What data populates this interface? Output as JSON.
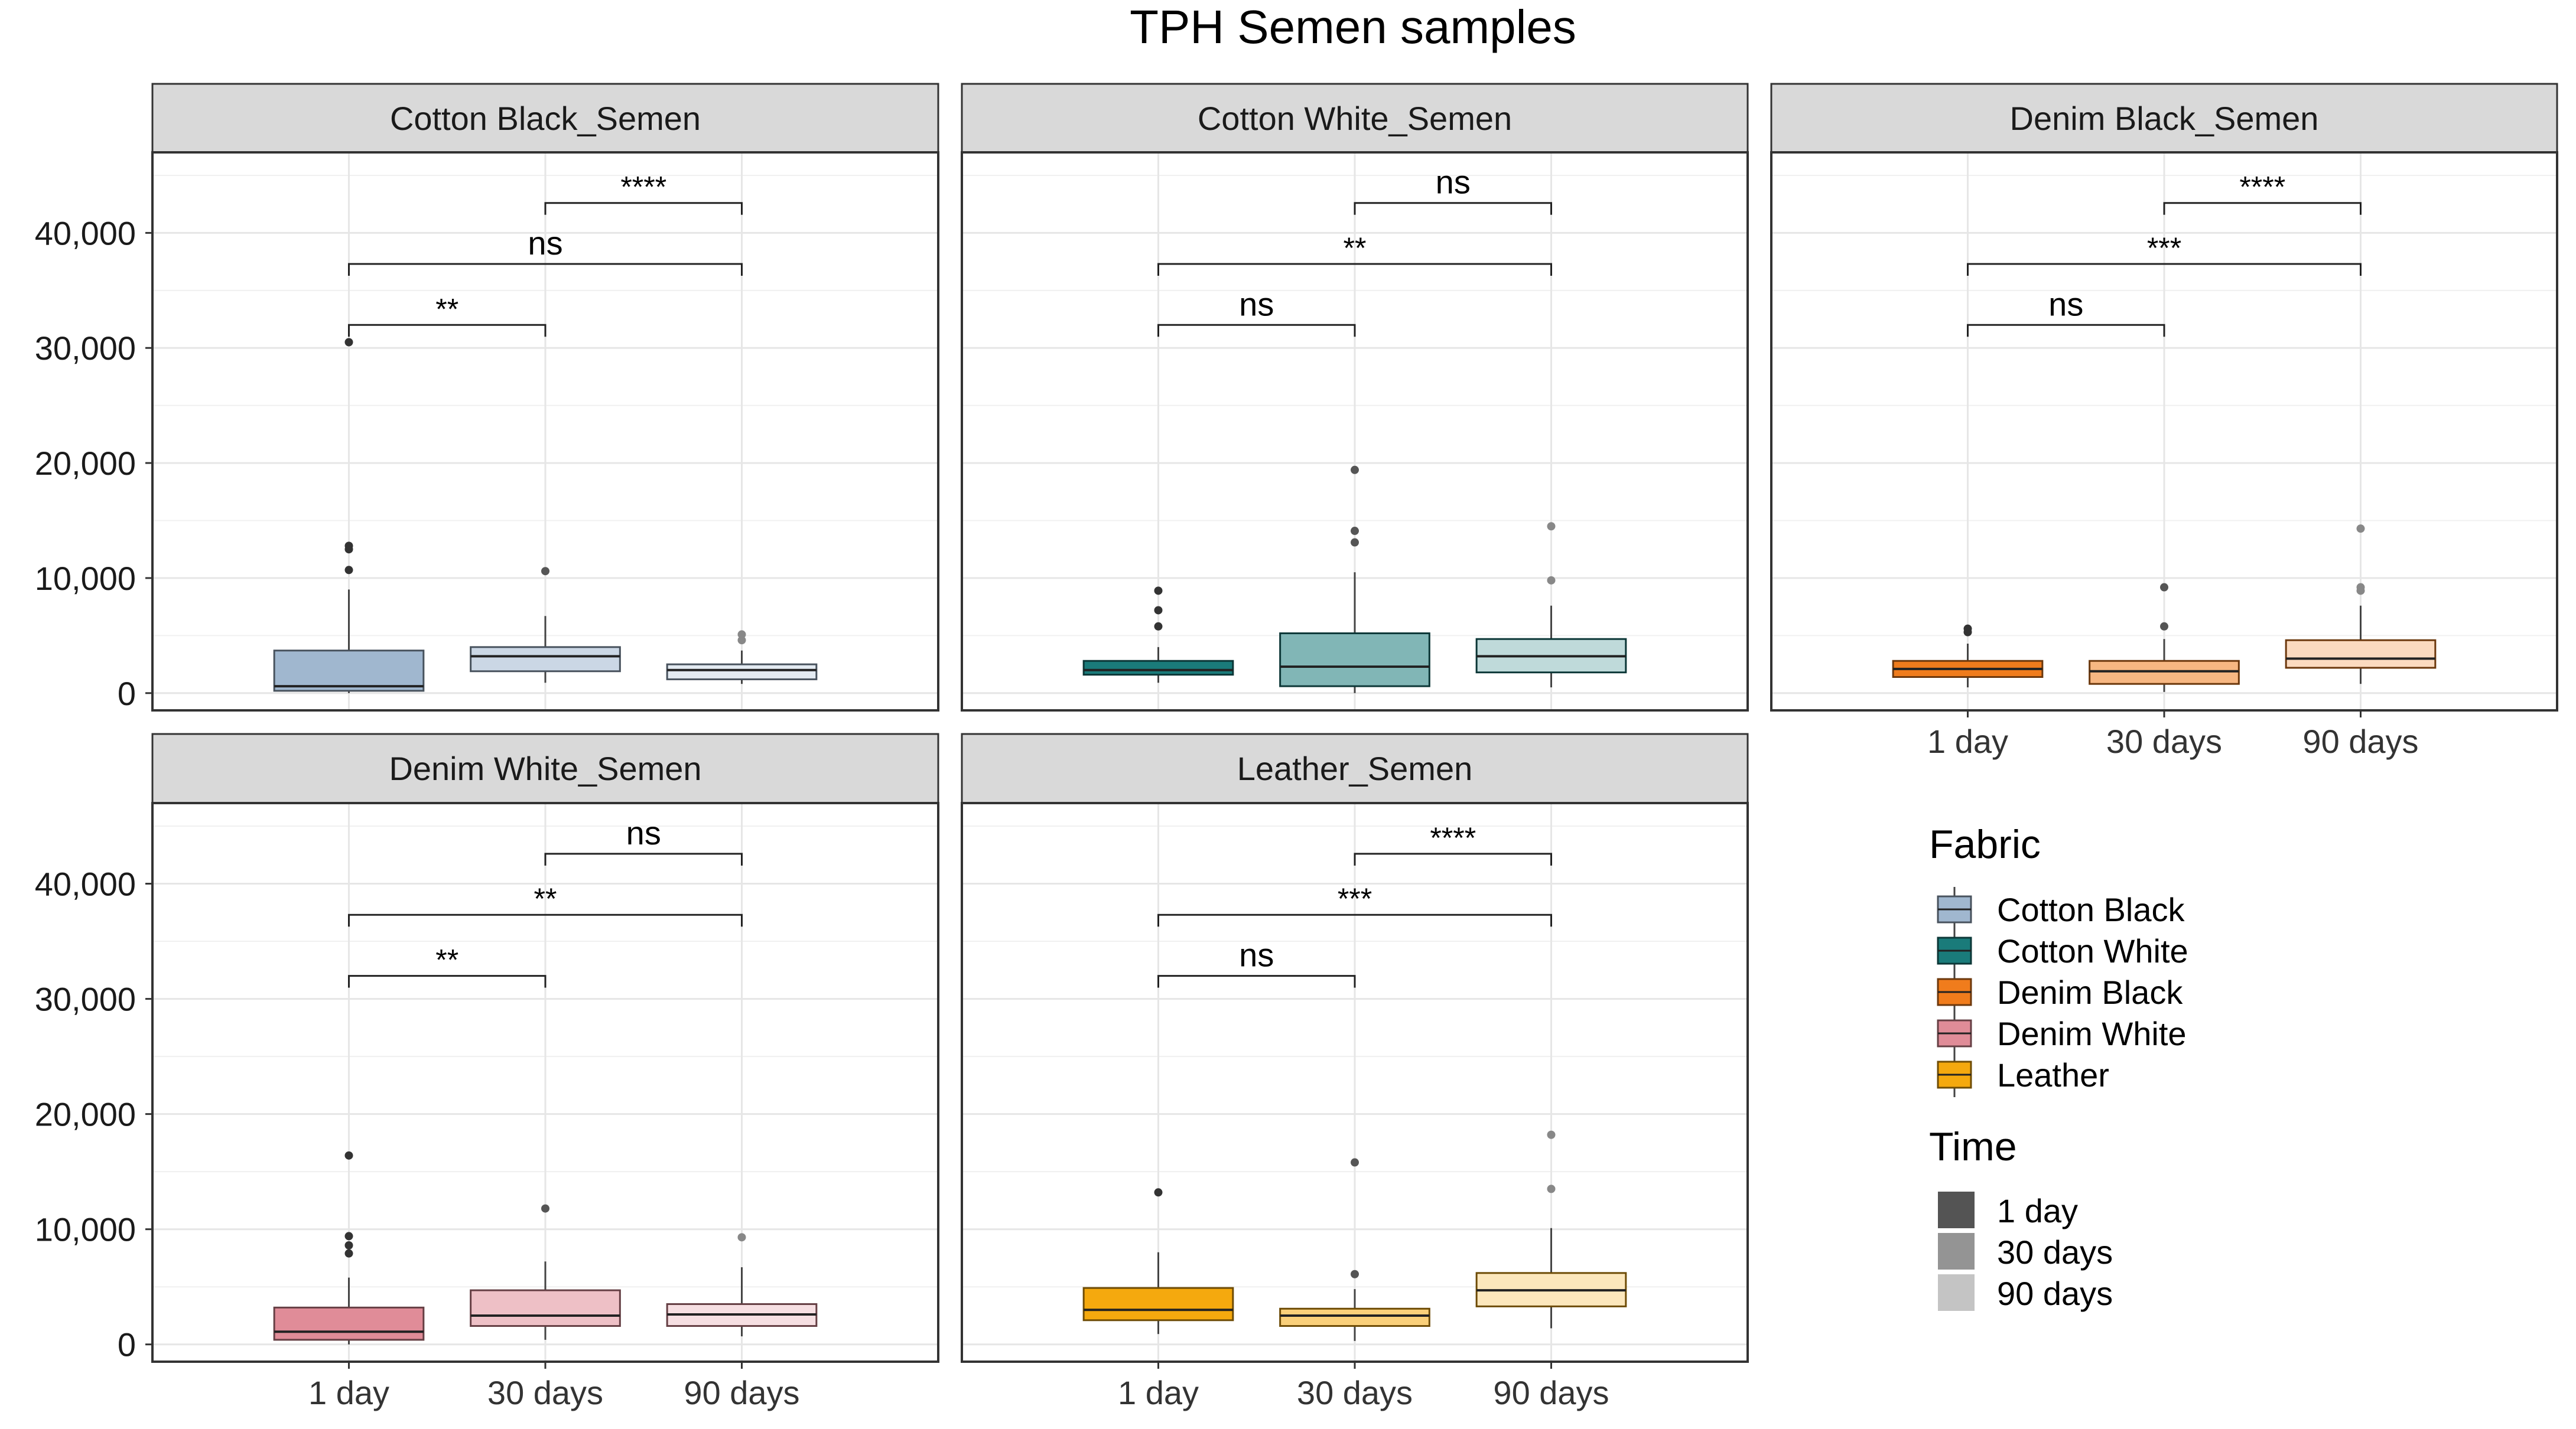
{
  "chart_data": {
    "type": "box",
    "title": "TPH Semen samples",
    "xlabel": "",
    "ylabel": "",
    "ylim": [
      -1500,
      47000
    ],
    "yticks": [
      0,
      10000,
      20000,
      30000,
      40000
    ],
    "ytick_labels": [
      "0",
      "10,000",
      "20,000",
      "30,000",
      "40,000"
    ],
    "categories": [
      "1 day",
      "30 days",
      "90 days"
    ],
    "grid": true,
    "panels": [
      {
        "name": "Cotton Black_Semen",
        "fabric": "Cotton Black",
        "boxes": [
          {
            "time": "1 day",
            "q1": 200,
            "median": 600,
            "q3": 3700,
            "whisker_low": 0,
            "whisker_high": 9000,
            "outliers": [
              10700,
              12500,
              12800,
              30500
            ]
          },
          {
            "time": "30 days",
            "q1": 1900,
            "median": 3200,
            "q3": 4000,
            "whisker_low": 900,
            "whisker_high": 6700,
            "outliers": [
              10600
            ]
          },
          {
            "time": "90 days",
            "q1": 1200,
            "median": 2000,
            "q3": 2500,
            "whisker_low": 800,
            "whisker_high": 3700,
            "outliers": [
              4600,
              5100
            ]
          }
        ],
        "comparisons": [
          {
            "from": "1 day",
            "to": "30 days",
            "y": 32000,
            "label": "**"
          },
          {
            "from": "1 day",
            "to": "90 days",
            "y": 37300,
            "label": "ns"
          },
          {
            "from": "30 days",
            "to": "90 days",
            "y": 42600,
            "label": "****"
          }
        ]
      },
      {
        "name": "Cotton White_Semen",
        "fabric": "Cotton White",
        "boxes": [
          {
            "time": "1 day",
            "q1": 1600,
            "median": 2000,
            "q3": 2800,
            "whisker_low": 900,
            "whisker_high": 4000,
            "outliers": [
              5800,
              7200,
              8900
            ]
          },
          {
            "time": "30 days",
            "q1": 600,
            "median": 2300,
            "q3": 5200,
            "whisker_low": 0,
            "whisker_high": 10500,
            "outliers": [
              13100,
              14100,
              19400
            ]
          },
          {
            "time": "90 days",
            "q1": 1800,
            "median": 3200,
            "q3": 4700,
            "whisker_low": 500,
            "whisker_high": 7600,
            "outliers": [
              9800,
              14500
            ]
          }
        ],
        "comparisons": [
          {
            "from": "1 day",
            "to": "30 days",
            "y": 32000,
            "label": "ns"
          },
          {
            "from": "1 day",
            "to": "90 days",
            "y": 37300,
            "label": "**"
          },
          {
            "from": "30 days",
            "to": "90 days",
            "y": 42600,
            "label": "ns"
          }
        ]
      },
      {
        "name": "Denim Black_Semen",
        "fabric": "Denim Black",
        "boxes": [
          {
            "time": "1 day",
            "q1": 1400,
            "median": 2100,
            "q3": 2800,
            "whisker_low": 500,
            "whisker_high": 4300,
            "outliers": [
              5300,
              5600
            ]
          },
          {
            "time": "30 days",
            "q1": 800,
            "median": 1900,
            "q3": 2800,
            "whisker_low": 100,
            "whisker_high": 4700,
            "outliers": [
              5800,
              9200
            ]
          },
          {
            "time": "90 days",
            "q1": 2200,
            "median": 3000,
            "q3": 4600,
            "whisker_low": 800,
            "whisker_high": 7600,
            "outliers": [
              8900,
              9200,
              14300
            ]
          }
        ],
        "comparisons": [
          {
            "from": "1 day",
            "to": "30 days",
            "y": 32000,
            "label": "ns"
          },
          {
            "from": "1 day",
            "to": "90 days",
            "y": 37300,
            "label": "***"
          },
          {
            "from": "30 days",
            "to": "90 days",
            "y": 42600,
            "label": "****"
          }
        ]
      },
      {
        "name": "Denim White_Semen",
        "fabric": "Denim White",
        "boxes": [
          {
            "time": "1 day",
            "q1": 400,
            "median": 1100,
            "q3": 3200,
            "whisker_low": 0,
            "whisker_high": 5800,
            "outliers": [
              7900,
              8600,
              9400,
              16400
            ]
          },
          {
            "time": "30 days",
            "q1": 1600,
            "median": 2500,
            "q3": 4700,
            "whisker_low": 400,
            "whisker_high": 7200,
            "outliers": [
              11800
            ]
          },
          {
            "time": "90 days",
            "q1": 1600,
            "median": 2600,
            "q3": 3500,
            "whisker_low": 700,
            "whisker_high": 6700,
            "outliers": [
              9300
            ]
          }
        ],
        "comparisons": [
          {
            "from": "1 day",
            "to": "30 days",
            "y": 32000,
            "label": "**"
          },
          {
            "from": "1 day",
            "to": "90 days",
            "y": 37300,
            "label": "**"
          },
          {
            "from": "30 days",
            "to": "90 days",
            "y": 42600,
            "label": "ns"
          }
        ]
      },
      {
        "name": "Leather_Semen",
        "fabric": "Leather",
        "boxes": [
          {
            "time": "1 day",
            "q1": 2100,
            "median": 3000,
            "q3": 4900,
            "whisker_low": 900,
            "whisker_high": 8000,
            "outliers": [
              13200
            ]
          },
          {
            "time": "30 days",
            "q1": 1600,
            "median": 2500,
            "q3": 3100,
            "whisker_low": 300,
            "whisker_high": 4800,
            "outliers": [
              6100,
              15800
            ]
          },
          {
            "time": "90 days",
            "q1": 3300,
            "median": 4700,
            "q3": 6200,
            "whisker_low": 1400,
            "whisker_high": 10100,
            "outliers": [
              13500,
              18200
            ]
          }
        ],
        "comparisons": [
          {
            "from": "1 day",
            "to": "30 days",
            "y": 32000,
            "label": "ns"
          },
          {
            "from": "1 day",
            "to": "90 days",
            "y": 37300,
            "label": "***"
          },
          {
            "from": "30 days",
            "to": "90 days",
            "y": 42600,
            "label": "****"
          }
        ]
      }
    ],
    "legend": {
      "fabric_title": "Fabric",
      "fabric_items": [
        {
          "label": "Cotton Black",
          "color": "#a0b7cf"
        },
        {
          "label": "Cotton White",
          "color": "#1a7b7a"
        },
        {
          "label": "Denim Black",
          "color": "#f07c1c"
        },
        {
          "label": "Denim White",
          "color": "#e08c98"
        },
        {
          "label": "Leather",
          "color": "#f5a90e"
        }
      ],
      "time_title": "Time",
      "time_items": [
        {
          "label": "1 day",
          "color": "#545454"
        },
        {
          "label": "30 days",
          "color": "#949494"
        },
        {
          "label": "90 days",
          "color": "#c4c4c4"
        }
      ]
    }
  }
}
